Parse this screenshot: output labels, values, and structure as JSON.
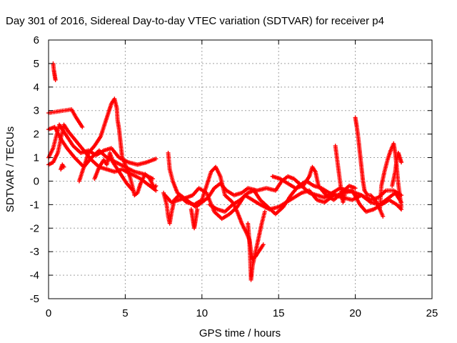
{
  "chart_data": {
    "type": "scatter",
    "title": "Day 301 of 2016, Sidereal Day-to-day VTEC variation (SDTVAR) for receiver p4",
    "xlabel": "GPS time / hours",
    "ylabel": "SDTVAR / TECUs",
    "xlim": [
      0,
      25
    ],
    "ylim": [
      -5,
      6
    ],
    "xticks": [
      "0",
      "5",
      "10",
      "15",
      "20",
      "25"
    ],
    "yticks": [
      "-5",
      "-4",
      "-3",
      "-2",
      "-1",
      "0",
      "1",
      "2",
      "3",
      "4",
      "5",
      "6"
    ],
    "grid": true,
    "marker": "plus",
    "color": "#ff0000",
    "series": [
      {
        "tracks": [
          [
            [
              0.0,
              2.9
            ],
            [
              0.5,
              2.95
            ],
            [
              1.0,
              3.0
            ],
            [
              1.5,
              3.05
            ],
            [
              1.8,
              2.7
            ],
            [
              2.2,
              2.3
            ]
          ],
          [
            [
              0.0,
              2.2
            ],
            [
              0.4,
              2.3
            ],
            [
              0.8,
              1.8
            ],
            [
              1.2,
              1.4
            ],
            [
              1.7,
              1.0
            ],
            [
              2.3,
              0.6
            ],
            [
              2.8,
              1.0
            ],
            [
              3.3,
              1.3
            ],
            [
              3.8,
              1.0
            ],
            [
              4.4,
              0.8
            ],
            [
              5.0,
              0.6
            ],
            [
              5.6,
              0.4
            ],
            [
              6.2,
              0.3
            ],
            [
              6.8,
              0.1
            ]
          ],
          [
            [
              0.0,
              1.0
            ],
            [
              0.3,
              1.4
            ],
            [
              0.7,
              2.4
            ],
            [
              1.1,
              2.0
            ],
            [
              1.6,
              1.5
            ],
            [
              2.1,
              1.2
            ],
            [
              2.6,
              1.3
            ],
            [
              3.1,
              1.1
            ],
            [
              3.6,
              1.3
            ],
            [
              4.1,
              1.4
            ],
            [
              4.6,
              1.0
            ],
            [
              5.2,
              0.8
            ],
            [
              5.8,
              0.7
            ],
            [
              6.4,
              0.8
            ],
            [
              7.0,
              0.95
            ]
          ],
          [
            [
              0.0,
              0.7
            ],
            [
              0.3,
              0.8
            ],
            [
              0.6,
              1.2
            ],
            [
              1.0,
              2.4
            ],
            [
              1.3,
              2.1
            ],
            [
              1.8,
              1.7
            ],
            [
              2.3,
              1.3
            ],
            [
              2.8,
              0.9
            ],
            [
              3.3,
              0.6
            ],
            [
              3.8,
              0.5
            ],
            [
              4.3,
              0.4
            ],
            [
              4.8,
              0.5
            ],
            [
              5.4,
              0.3
            ],
            [
              6.0,
              0.1
            ],
            [
              6.6,
              -0.2
            ],
            [
              7.0,
              -0.4
            ]
          ],
          [
            [
              0.3,
              5.0
            ],
            [
              0.35,
              4.7
            ],
            [
              0.4,
              4.5
            ],
            [
              0.45,
              4.3
            ]
          ],
          [
            [
              0.8,
              0.5
            ],
            [
              0.9,
              0.7
            ],
            [
              1.0,
              0.6
            ]
          ],
          [
            [
              2.0,
              0.0
            ],
            [
              2.3,
              0.6
            ],
            [
              2.6,
              1.2
            ],
            [
              3.0,
              1.5
            ],
            [
              3.4,
              1.9
            ],
            [
              3.7,
              2.5
            ],
            [
              3.9,
              2.9
            ],
            [
              4.1,
              3.3
            ],
            [
              4.3,
              3.5
            ],
            [
              4.45,
              3.1
            ],
            [
              4.5,
              2.6
            ],
            [
              4.6,
              2.2
            ],
            [
              4.7,
              1.6
            ],
            [
              4.8,
              1.0
            ],
            [
              5.0,
              0.7
            ],
            [
              5.3,
              0.2
            ],
            [
              5.5,
              -0.3
            ],
            [
              5.6,
              -0.6
            ],
            [
              5.8,
              -0.5
            ],
            [
              6.0,
              -0.1
            ],
            [
              6.3,
              0.3
            ],
            [
              6.6,
              0.1
            ],
            [
              6.9,
              -0.3
            ],
            [
              7.0,
              -0.2
            ]
          ],
          [
            [
              3.0,
              0.1
            ],
            [
              3.3,
              0.6
            ],
            [
              3.6,
              0.9
            ],
            [
              3.8,
              0.7
            ],
            [
              4.0,
              1.2
            ],
            [
              4.2,
              0.8
            ],
            [
              4.5,
              0.5
            ],
            [
              4.8,
              0.2
            ],
            [
              5.1,
              -0.1
            ],
            [
              5.5,
              -0.4
            ]
          ],
          [
            [
              7.5,
              -0.5
            ],
            [
              7.7,
              -1.0
            ],
            [
              7.8,
              -1.5
            ],
            [
              7.9,
              -1.8
            ],
            [
              8.0,
              -1.4
            ],
            [
              8.2,
              -0.8
            ],
            [
              8.5,
              -0.6
            ],
            [
              9.0,
              -0.9
            ],
            [
              9.5,
              -1.0
            ],
            [
              10.0,
              -0.8
            ],
            [
              10.3,
              -0.2
            ],
            [
              10.6,
              0.4
            ],
            [
              10.9,
              0.6
            ],
            [
              11.2,
              0.2
            ],
            [
              11.5,
              -0.6
            ],
            [
              12.0,
              -0.9
            ],
            [
              12.3,
              -1.3
            ],
            [
              12.6,
              -1.8
            ],
            [
              12.9,
              -2.2
            ],
            [
              13.1,
              -2.5
            ],
            [
              13.2,
              -3.0
            ],
            [
              13.3,
              -3.3
            ],
            [
              13.5,
              -3.2
            ],
            [
              13.8,
              -2.9
            ],
            [
              14.0,
              -2.7
            ]
          ],
          [
            [
              7.8,
              1.2
            ],
            [
              7.9,
              0.5
            ],
            [
              8.1,
              0.0
            ],
            [
              8.4,
              -0.5
            ],
            [
              8.8,
              -0.7
            ],
            [
              9.2,
              -0.9
            ],
            [
              9.6,
              -1.1
            ],
            [
              10.0,
              -0.9
            ],
            [
              10.4,
              -0.7
            ],
            [
              10.8,
              -0.3
            ],
            [
              11.2,
              -0.1
            ],
            [
              11.6,
              -0.4
            ],
            [
              12.1,
              -0.6
            ],
            [
              12.6,
              -0.5
            ],
            [
              13.0,
              -0.3
            ],
            [
              13.6,
              -0.4
            ],
            [
              14.2,
              -0.3
            ],
            [
              14.8,
              -0.4
            ],
            [
              15.2,
              0.0
            ],
            [
              15.6,
              0.2
            ],
            [
              16.0,
              0.1
            ],
            [
              16.5,
              -0.2
            ],
            [
              17.0,
              -0.5
            ],
            [
              17.5,
              -0.6
            ],
            [
              18.0,
              -0.7
            ],
            [
              18.5,
              -0.5
            ],
            [
              19.0,
              -0.3
            ],
            [
              19.5,
              -0.4
            ],
            [
              20.0,
              -0.5
            ],
            [
              20.4,
              -0.6
            ],
            [
              21.0,
              -0.9
            ],
            [
              21.6,
              -1.0
            ],
            [
              22.2,
              -0.7
            ],
            [
              22.6,
              -0.5
            ],
            [
              23.0,
              -0.9
            ]
          ],
          [
            [
              7.6,
              -0.6
            ],
            [
              8.0,
              -0.9
            ],
            [
              8.5,
              -0.8
            ],
            [
              9.0,
              -0.7
            ],
            [
              9.4,
              -0.6
            ],
            [
              9.8,
              -0.3
            ],
            [
              10.3,
              -0.5
            ],
            [
              10.8,
              -1.3
            ],
            [
              11.3,
              -1.6
            ],
            [
              11.8,
              -1.4
            ],
            [
              12.3,
              -1.1
            ],
            [
              12.8,
              -0.6
            ],
            [
              13.3,
              -0.8
            ],
            [
              13.8,
              -1.0
            ],
            [
              14.4,
              -1.2
            ],
            [
              15.0,
              -1.1
            ],
            [
              15.5,
              -0.9
            ],
            [
              16.0,
              -0.7
            ],
            [
              16.5,
              -0.5
            ],
            [
              17.0,
              -0.4
            ],
            [
              17.5,
              -0.8
            ],
            [
              18.0,
              -0.9
            ],
            [
              18.6,
              -0.6
            ],
            [
              19.2,
              -0.7
            ],
            [
              19.8,
              -0.8
            ],
            [
              20.4,
              -0.6
            ],
            [
              21.0,
              -0.8
            ],
            [
              21.5,
              -0.7
            ],
            [
              22.0,
              -0.4
            ],
            [
              22.5,
              -0.4
            ],
            [
              23.0,
              -0.6
            ]
          ],
          [
            [
              9.3,
              -1.2
            ],
            [
              9.4,
              -1.6
            ],
            [
              9.5,
              -2.0
            ],
            [
              9.6,
              -1.6
            ],
            [
              9.7,
              -1.2
            ]
          ],
          [
            [
              10.5,
              -1.0
            ],
            [
              11.0,
              -1.2
            ],
            [
              11.5,
              -1.3
            ],
            [
              12.0,
              -1.0
            ],
            [
              12.5,
              -0.8
            ],
            [
              13.0,
              -0.5
            ],
            [
              13.4,
              -0.4
            ],
            [
              13.8,
              -0.8
            ],
            [
              14.3,
              -1.1
            ],
            [
              14.8,
              -1.4
            ],
            [
              15.3,
              -1.1
            ],
            [
              15.8,
              -0.6
            ],
            [
              16.3,
              -0.2
            ],
            [
              16.8,
              0.0
            ],
            [
              17.3,
              -0.2
            ],
            [
              17.8,
              -0.3
            ],
            [
              18.3,
              -0.5
            ],
            [
              18.8,
              -0.6
            ],
            [
              19.3,
              -0.5
            ],
            [
              19.8,
              -0.4
            ],
            [
              20.3,
              -1.0
            ],
            [
              20.7,
              -1.3
            ],
            [
              21.2,
              -1.2
            ],
            [
              21.7,
              -1.0
            ],
            [
              22.2,
              -0.8
            ],
            [
              22.7,
              -1.0
            ],
            [
              23.0,
              -1.2
            ]
          ],
          [
            [
              13.0,
              -1.8
            ],
            [
              13.1,
              -2.6
            ],
            [
              13.15,
              -3.4
            ],
            [
              13.2,
              -4.2
            ],
            [
              13.3,
              -3.6
            ],
            [
              13.5,
              -3.0
            ],
            [
              13.7,
              -2.4
            ],
            [
              13.9,
              -1.8
            ],
            [
              14.1,
              -1.3
            ]
          ],
          [
            [
              14.6,
              0.2
            ],
            [
              15.1,
              0.1
            ],
            [
              15.6,
              -0.1
            ],
            [
              16.1,
              -0.3
            ],
            [
              16.6,
              -0.2
            ],
            [
              17.0,
              0.2
            ],
            [
              17.2,
              0.6
            ],
            [
              17.4,
              0.4
            ],
            [
              17.6,
              -0.2
            ],
            [
              18.1,
              -0.6
            ],
            [
              18.6,
              -0.8
            ],
            [
              19.1,
              -0.5
            ],
            [
              19.6,
              -0.2
            ],
            [
              20.0,
              -0.3
            ]
          ],
          [
            [
              18.7,
              1.5
            ],
            [
              18.8,
              1.0
            ],
            [
              18.9,
              0.5
            ],
            [
              19.0,
              0.0
            ],
            [
              19.1,
              -0.5
            ],
            [
              19.2,
              -0.9
            ],
            [
              19.3,
              -0.6
            ]
          ],
          [
            [
              20.0,
              2.7
            ],
            [
              20.1,
              2.3
            ],
            [
              20.2,
              1.8
            ],
            [
              20.3,
              1.2
            ],
            [
              20.4,
              0.6
            ],
            [
              20.5,
              0.0
            ],
            [
              20.6,
              -0.4
            ],
            [
              20.8,
              -0.6
            ],
            [
              21.0,
              -0.6
            ],
            [
              21.3,
              -0.8
            ],
            [
              21.6,
              -1.2
            ],
            [
              21.8,
              -1.5
            ]
          ],
          [
            [
              21.6,
              -1.2
            ],
            [
              21.7,
              -0.2
            ],
            [
              21.9,
              0.4
            ],
            [
              22.1,
              0.9
            ],
            [
              22.3,
              1.3
            ],
            [
              22.5,
              1.6
            ],
            [
              22.6,
              1.2
            ],
            [
              22.7,
              0.6
            ],
            [
              22.8,
              -0.1
            ],
            [
              22.9,
              -0.6
            ],
            [
              23.0,
              -1.1
            ]
          ],
          [
            [
              22.4,
              -0.2
            ],
            [
              22.6,
              0.4
            ],
            [
              22.7,
              0.9
            ],
            [
              22.8,
              1.2
            ],
            [
              22.9,
              1.0
            ],
            [
              23.0,
              0.8
            ]
          ]
        ]
      }
    ]
  }
}
